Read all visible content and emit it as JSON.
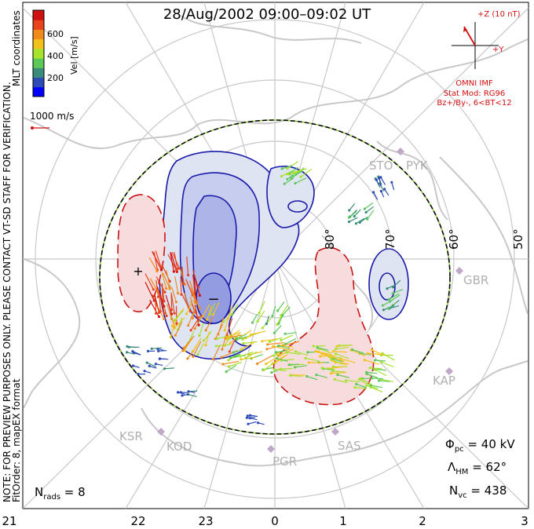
{
  "title": "28/Aug/2002 09:00–09:02 UT",
  "side_notes": {
    "line1": "NOTE: FOR PREVIEW PURPOSES ONLY. PLEASE CONTACT VT-SD STAFF FOR VERIFICATION.",
    "line2": "FitOrder: 8, mapEX format",
    "line3": "MLT coordinates"
  },
  "colorbar": {
    "label": "Vel [m/s]",
    "ticks": [
      "600",
      "400",
      "200"
    ],
    "colors": [
      "#0000ff",
      "#2e49b8",
      "#3a8c7a",
      "#5cc85a",
      "#a6e22e",
      "#f2c21c",
      "#f08a1c",
      "#e8431c",
      "#d01010"
    ]
  },
  "ref_vector": {
    "label": "1000 m/s"
  },
  "imf": {
    "z_label": "+Z (10 nT)",
    "y_label": "+Y",
    "source": "OMNI IMF",
    "model": "Stat Mod: RG96",
    "condition": "Bz+/By-, 6<BT<12"
  },
  "stats": {
    "phi_pc": "40 kV",
    "lambda_hm": "62°",
    "n_vc": "438",
    "n_rads": "8"
  },
  "lat_labels": [
    "80°",
    "70°",
    "60°",
    "50°"
  ],
  "mlt_labels": [
    "21",
    "22",
    "23",
    "0",
    "1",
    "2",
    "3"
  ],
  "stations": [
    "STO",
    "PYK",
    "GBR",
    "KAP",
    "SAS",
    "PGR",
    "KOD",
    "KSR"
  ],
  "markers": {
    "max": "+",
    "min": "−"
  },
  "chart_data": {
    "type": "scatter",
    "title": "28/Aug/2002 09:00–09:02 UT",
    "coordinates": "MLT",
    "xlabel": "",
    "ylabel": "",
    "mlt_ticks": [
      21,
      22,
      23,
      0,
      1,
      2,
      3
    ],
    "latitude_circles": [
      80,
      70,
      60,
      50
    ],
    "heppner_maynard_boundary_lat": 62,
    "velocity_range": [
      0,
      700
    ],
    "cross_polar_cap_potential_kV": 40,
    "n_vectors": 438,
    "n_radars": 8,
    "potential_extrema": [
      "+",
      "−"
    ],
    "grid": true,
    "legend": "top-left colorbar"
  }
}
